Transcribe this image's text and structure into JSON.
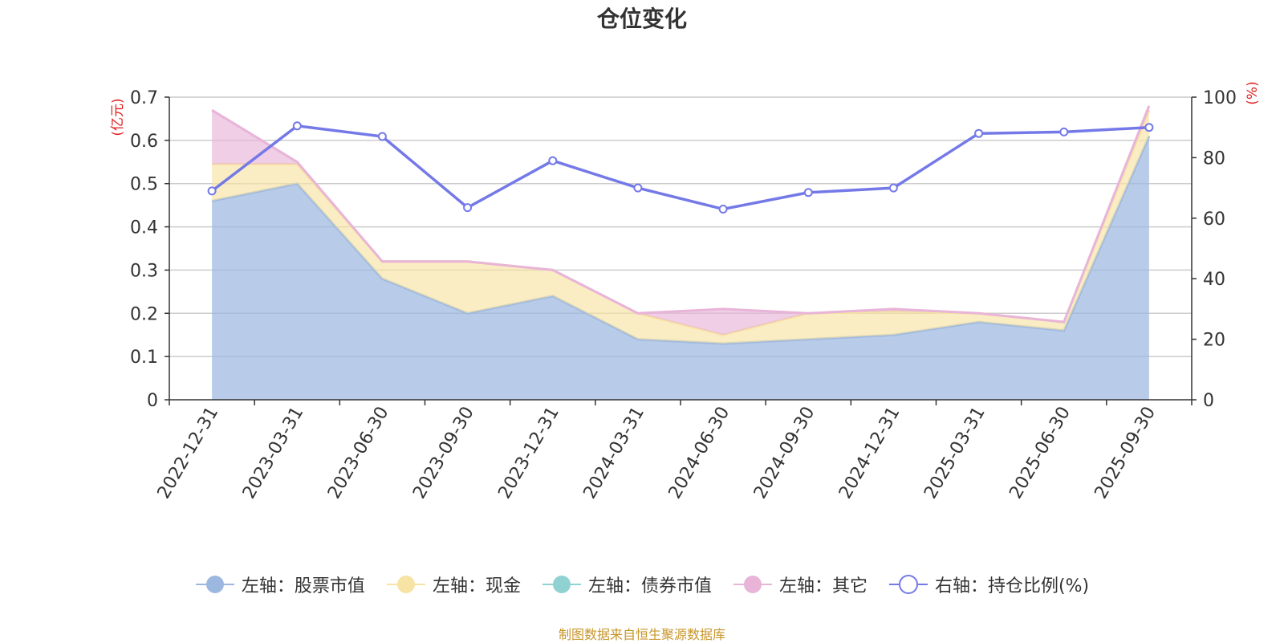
{
  "chart_data": {
    "type": "area",
    "title": "仓位变化",
    "left_axis_unit": "(亿元)",
    "right_axis_unit": "(%)",
    "categories": [
      "2022-12-31",
      "2023-03-31",
      "2023-06-30",
      "2023-09-30",
      "2023-12-31",
      "2024-03-31",
      "2024-06-30",
      "2024-09-30",
      "2024-12-31",
      "2025-03-31",
      "2025-06-30",
      "2025-09-30"
    ],
    "left_ylim": [
      0,
      0.7
    ],
    "left_ticks": [
      "0",
      "0.1",
      "0.2",
      "0.3",
      "0.4",
      "0.5",
      "0.6",
      "0.7"
    ],
    "right_ylim": [
      0,
      100
    ],
    "right_ticks": [
      "0",
      "20",
      "40",
      "60",
      "80",
      "100"
    ],
    "series": [
      {
        "name": "左轴：股票市值",
        "axis": "left",
        "stack": true,
        "color": "#9db8e0",
        "values": [
          0.46,
          0.5,
          0.28,
          0.2,
          0.24,
          0.14,
          0.13,
          0.14,
          0.15,
          0.18,
          0.16,
          0.61
        ]
      },
      {
        "name": "左轴：现金",
        "axis": "left",
        "stack": true,
        "color": "#f7e3a3",
        "values": [
          0.085,
          0.045,
          0.04,
          0.12,
          0.06,
          0.06,
          0.02,
          0.06,
          0.055,
          0.02,
          0.02,
          0.06
        ]
      },
      {
        "name": "左轴：债券市值",
        "axis": "left",
        "stack": true,
        "color": "#90d2d2",
        "values": [
          0,
          0,
          0,
          0,
          0,
          0,
          0,
          0,
          0,
          0,
          0,
          0
        ]
      },
      {
        "name": "左轴：其它",
        "axis": "left",
        "stack": true,
        "color": "#e8b4d8",
        "values": [
          0.125,
          0.005,
          0,
          0,
          0,
          0,
          0.06,
          0,
          0.005,
          0,
          0,
          0.01
        ]
      },
      {
        "name": "右轴：持仓比例(%)",
        "axis": "right",
        "stack": false,
        "color": "#7479e8",
        "values": [
          69,
          90.5,
          87,
          63.5,
          79,
          70,
          63,
          68.5,
          70,
          88,
          88.5,
          90
        ]
      }
    ]
  },
  "legend": [
    {
      "label": "左轴：股票市值",
      "icon": "filled-circle",
      "color": "#9db8e0"
    },
    {
      "label": "左轴：现金",
      "icon": "filled-circle",
      "color": "#f7e3a3"
    },
    {
      "label": "左轴：债券市值",
      "icon": "filled-circle",
      "color": "#90d2d2"
    },
    {
      "label": "左轴：其它",
      "icon": "filled-circle",
      "color": "#e8b4d8"
    },
    {
      "label": "右轴：持仓比例(%)",
      "icon": "hollow-circle",
      "color": "#7479e8"
    }
  ],
  "source_note": "制图数据来自恒生聚源数据库"
}
